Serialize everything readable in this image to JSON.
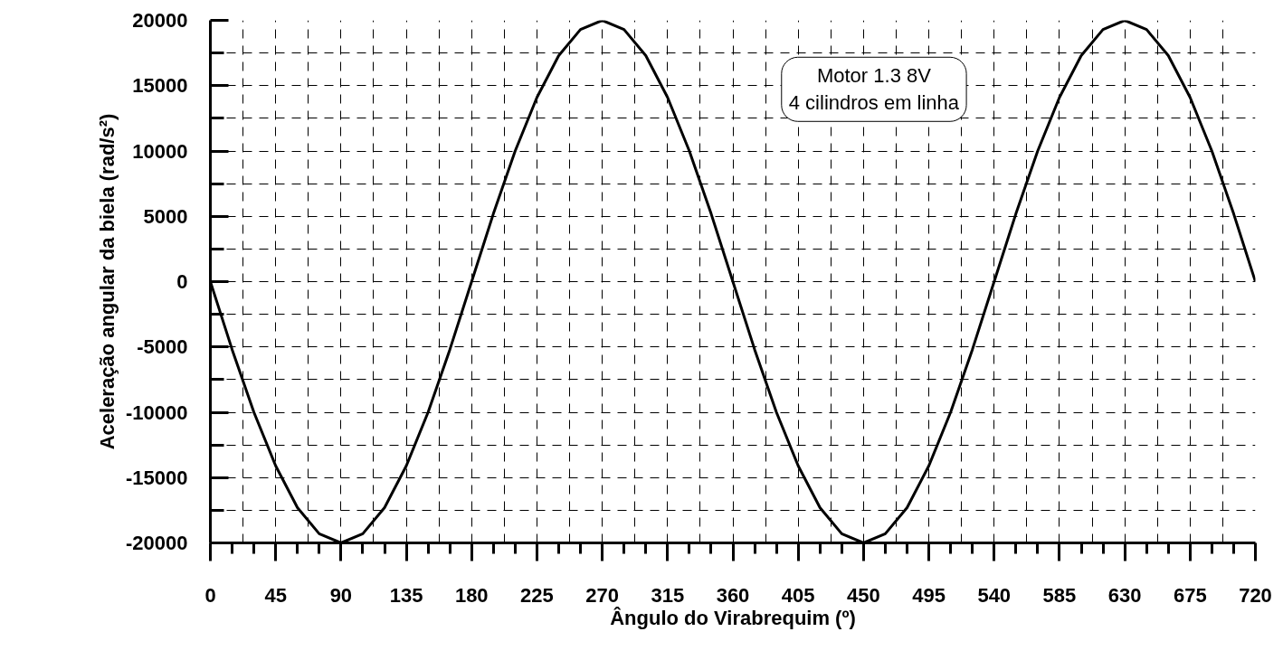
{
  "chart_data": {
    "type": "line",
    "xlabel": "Ângulo do Virabrequim (º)",
    "ylabel": "Aceleração angular da biela (rad/s²)",
    "x": [
      0,
      15,
      30,
      45,
      60,
      75,
      90,
      105,
      120,
      135,
      150,
      165,
      180,
      195,
      210,
      225,
      240,
      255,
      270,
      285,
      300,
      315,
      330,
      345,
      360,
      375,
      390,
      405,
      420,
      435,
      450,
      465,
      480,
      495,
      510,
      525,
      540,
      555,
      570,
      585,
      600,
      615,
      630,
      645,
      660,
      675,
      690,
      705,
      720
    ],
    "series": [
      {
        "color": "#000000",
        "values": [
          0,
          -5200,
          -10000,
          -14100,
          -17300,
          -19300,
          -20000,
          -19300,
          -17300,
          -14100,
          -10000,
          -5200,
          0,
          5200,
          10000,
          14100,
          17300,
          19300,
          20000,
          19300,
          17300,
          14100,
          10000,
          5200,
          0,
          -5200,
          -10000,
          -14100,
          -17300,
          -19300,
          -20000,
          -19300,
          -17300,
          -14100,
          -10000,
          -5200,
          0,
          5200,
          10000,
          14100,
          17300,
          19300,
          20000,
          19300,
          17300,
          14100,
          10000,
          5200,
          0
        ]
      }
    ],
    "xlim": [
      0,
      720
    ],
    "xticks": [
      0,
      45,
      90,
      135,
      180,
      225,
      270,
      315,
      360,
      405,
      450,
      495,
      540,
      585,
      630,
      675,
      720
    ],
    "ylim": [
      -20000,
      20000
    ],
    "yticks": [
      -20000,
      -15000,
      -10000,
      -5000,
      0,
      5000,
      10000,
      15000,
      20000
    ],
    "grid": true,
    "marker": "none",
    "line_style": "solid",
    "annotations": [
      "Motor 1.3 8V\n4 cilindros em linha"
    ]
  }
}
